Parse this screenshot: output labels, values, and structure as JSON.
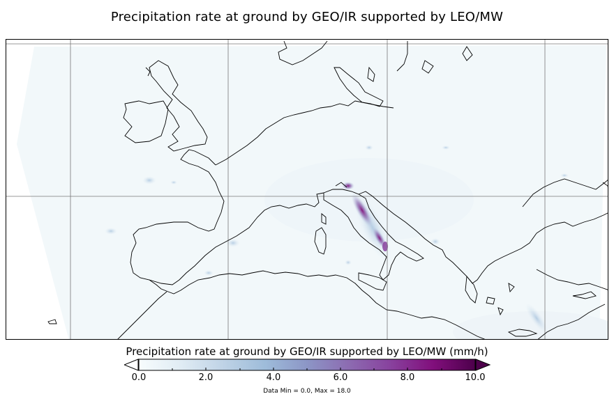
{
  "title": "Precipitation rate at ground by GEO/IR supported by LEO/MW",
  "colorbar": {
    "label": "Precipitation rate at ground by GEO/IR supported by LEO/MW (mm/h)",
    "ticks": [
      "0.0",
      "2.0",
      "4.0",
      "6.0",
      "8.0",
      "10.0"
    ],
    "min": 0.0,
    "max": 10.0,
    "colors": [
      "#f7fcfd",
      "#e0ecf4",
      "#bfd3e6",
      "#9ebcda",
      "#8c96c6",
      "#8c6bb1",
      "#88419d",
      "#810f7c",
      "#4d004b"
    ]
  },
  "stats_text": "Data Min = 0.0, Max = 18.0",
  "map": {
    "region": "Europe and Mediterranean",
    "projection": "geostationary",
    "gridlines": true
  }
}
